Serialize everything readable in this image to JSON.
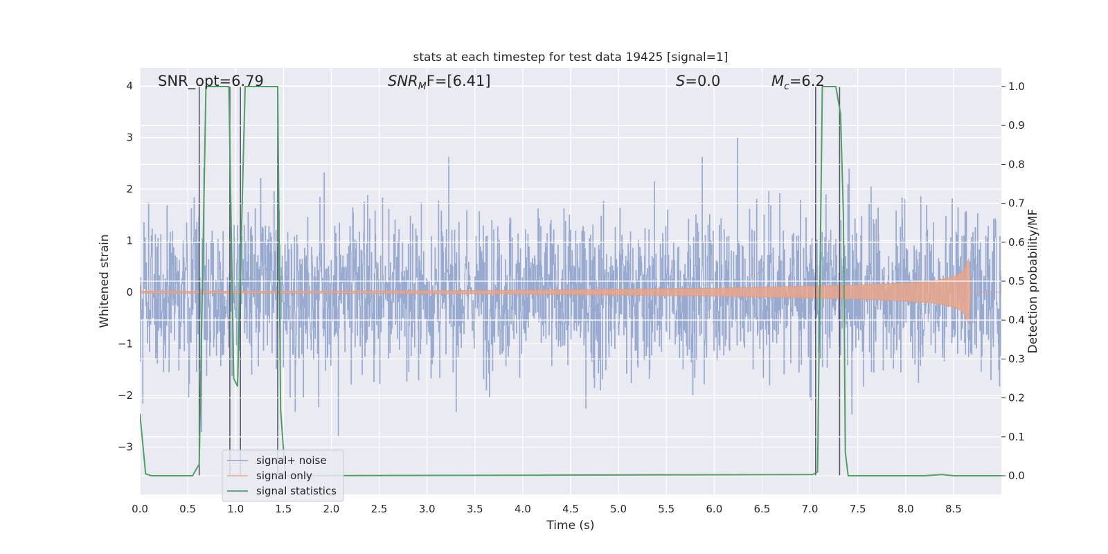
{
  "chart_data": {
    "type": "line",
    "title": "stats at each timestep for test data 19425 [signal=1]",
    "xlabel": "Time (s)",
    "ylabel": "Whitened strain",
    "ylabel_right": "Detection probability/MF",
    "xlim": [
      0.0,
      9.0
    ],
    "ylim": [
      -3.92,
      4.35
    ],
    "ylim_right": [
      -0.048,
      1.048
    ],
    "x_ticks": [
      "0.0",
      "0.5",
      "1.0",
      "1.5",
      "2.0",
      "2.5",
      "3.0",
      "3.5",
      "4.0",
      "4.5",
      "5.0",
      "5.5",
      "6.0",
      "6.5",
      "7.0",
      "7.5",
      "8.0",
      "8.5"
    ],
    "y_ticks": [
      "4",
      "3",
      "2",
      "1",
      "0",
      "−1",
      "−2",
      "−3"
    ],
    "y_ticks_right": [
      "1.0",
      "0.9",
      "0.8",
      "0.7",
      "0.6",
      "0.5",
      "0.4",
      "0.3",
      "0.2",
      "0.1",
      "0.0"
    ],
    "grid": true,
    "legend_position": "bottom-left",
    "annotations": {
      "snr_opt": "SNR_opt=6.79",
      "snr_mf_main": "SNR",
      "snr_mf_sub": "M",
      "snr_mf_rest": "F=[6.41]",
      "s_italic": "S",
      "s_rest": "=0.0",
      "mc_main": "M",
      "mc_sub": "c",
      "mc_rest": "=6.2"
    },
    "series": [
      {
        "name": "signal+ noise",
        "color": "#8fa3cc",
        "axis": "left",
        "description_note": "whitened noisy strain, roughly uniform band between about -2 and +2 with spikes up to +4.0 and down to -3.5"
      },
      {
        "name": "signal only",
        "color": "#e8a58a",
        "axis": "left",
        "envelope_x": [
          0.0,
          1.0,
          2.0,
          3.0,
          4.0,
          5.0,
          6.0,
          7.0,
          7.5,
          8.0,
          8.3,
          8.5,
          8.6,
          8.66,
          8.68,
          9.0
        ],
        "envelope_y": [
          0.02,
          0.02,
          0.02,
          0.03,
          0.04,
          0.06,
          0.08,
          0.12,
          0.14,
          0.18,
          0.22,
          0.3,
          0.4,
          0.65,
          0.0,
          0.0
        ]
      },
      {
        "name": "signal statistics",
        "color": "#4ea063",
        "axis": "right",
        "x": [
          0.0,
          0.06,
          0.12,
          0.55,
          0.62,
          0.69,
          0.93,
          0.98,
          1.02,
          1.1,
          1.44,
          1.47,
          1.52,
          7.03,
          7.08,
          7.13,
          7.27,
          7.32,
          7.35,
          7.37,
          7.4,
          8.2,
          8.38,
          8.5,
          9.0
        ],
        "y": [
          0.16,
          0.005,
          0.0,
          0.0,
          0.03,
          1.0,
          1.0,
          0.25,
          0.23,
          1.0,
          1.0,
          0.17,
          0.0,
          0.003,
          0.01,
          1.0,
          1.0,
          0.93,
          0.67,
          0.06,
          0.0,
          0.0,
          0.003,
          0.0,
          0.0
        ]
      }
    ],
    "markers": {
      "color": "#555566",
      "x": [
        0.62,
        0.94,
        1.05,
        1.44,
        7.06,
        7.31
      ]
    }
  }
}
